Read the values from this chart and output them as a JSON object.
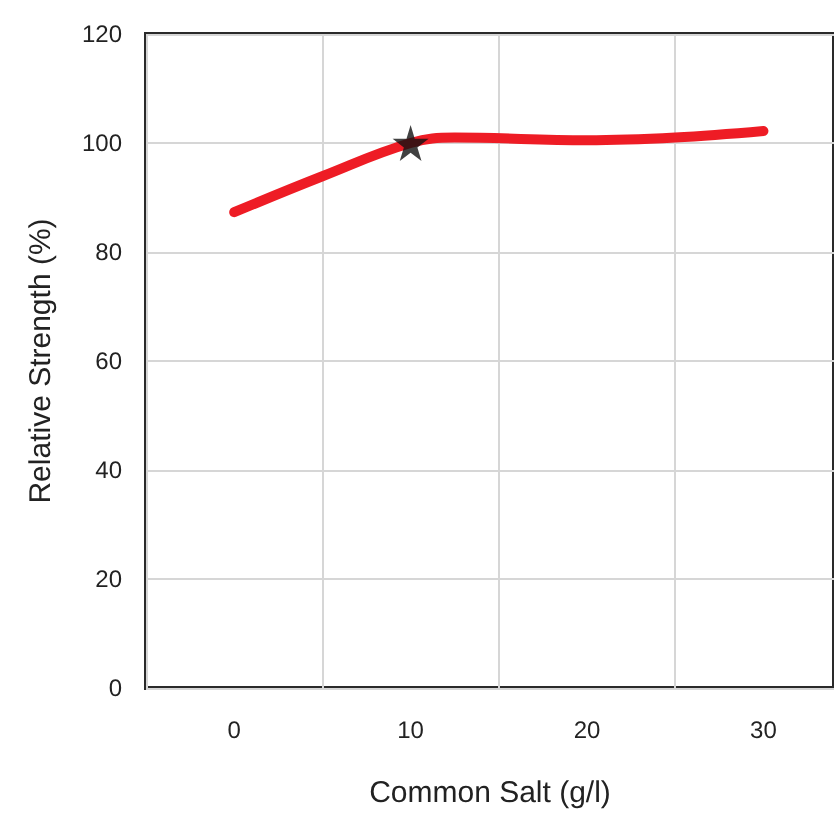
{
  "chart_data": {
    "type": "line",
    "xlabel": "Common Salt (g/l)",
    "ylabel": "Relative Strength (%)",
    "xlim": [
      -5,
      34
    ],
    "xticks": [
      {
        "value": -5,
        "label": null
      },
      0,
      {
        "value": 5,
        "label": null
      },
      10,
      {
        "value": 15,
        "label": null
      },
      20,
      {
        "value": 25,
        "label": null
      },
      30
    ],
    "ylim": [
      0,
      120
    ],
    "yticks": [
      0,
      20,
      40,
      60,
      80,
      100,
      120
    ],
    "grid": true,
    "line_style": "solid",
    "marker": "none",
    "series": [
      {
        "color": "#ee1c25",
        "x": [
          0,
          5,
          10,
          12.5,
          20,
          25,
          30
        ],
        "values": [
          87.3,
          93.9,
          100,
          101,
          100.5,
          101,
          102.2
        ]
      },
      {
        "type": "scatter",
        "marker": "star",
        "color": "#111111",
        "x": [
          10
        ],
        "values": [
          100
        ]
      }
    ]
  }
}
